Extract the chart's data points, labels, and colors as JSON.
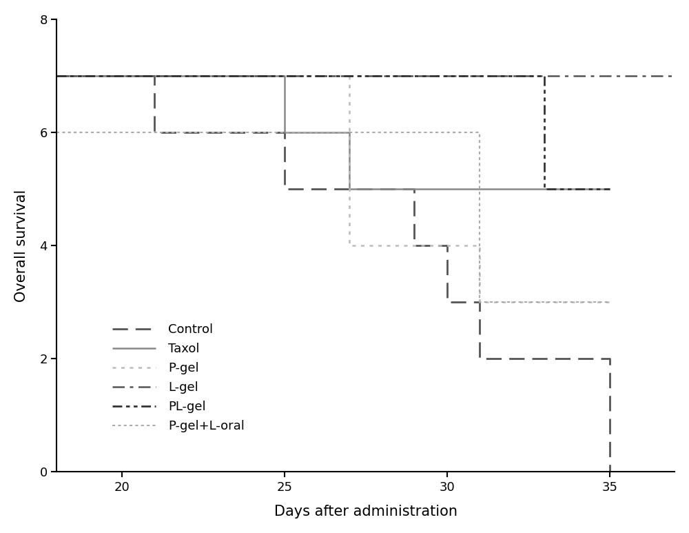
{
  "title": "",
  "xlabel": "Days after administration",
  "ylabel": "Overall survival",
  "xlim": [
    18,
    37
  ],
  "ylim": [
    0,
    8
  ],
  "xticks": [
    20,
    25,
    30,
    35
  ],
  "yticks": [
    0,
    2,
    4,
    6,
    8
  ],
  "figsize": [
    10.0,
    7.73
  ],
  "dpi": 100,
  "curves": {
    "Control": {
      "x": [
        18,
        21,
        21,
        25,
        25,
        29,
        29,
        30,
        30,
        31,
        31,
        35,
        35
      ],
      "y": [
        7,
        7,
        6,
        6,
        5,
        5,
        4,
        4,
        3,
        3,
        2,
        2,
        0
      ],
      "color": "#555555",
      "ls": [
        8,
        4
      ],
      "lw": 2.0,
      "legend": "Control"
    },
    "Taxol": {
      "x": [
        18,
        25,
        25,
        27,
        27,
        35
      ],
      "y": [
        7,
        7,
        6,
        6,
        5,
        5
      ],
      "color": "#888888",
      "ls": "solid",
      "lw": 1.8,
      "legend": "Taxol"
    },
    "P-gel": {
      "x": [
        18,
        27,
        27,
        31,
        31,
        35
      ],
      "y": [
        7,
        7,
        4,
        4,
        3,
        3
      ],
      "color": "#bbbbbb",
      "ls": [
        2,
        3
      ],
      "lw": 1.8,
      "legend": "P-gel"
    },
    "L-gel": {
      "x": [
        18,
        37
      ],
      "y": [
        7,
        7
      ],
      "color": "#555555",
      "ls": [
        7,
        3,
        2,
        3
      ],
      "lw": 1.8,
      "legend": "L-gel"
    },
    "PL-gel": {
      "x": [
        18,
        33,
        33,
        35
      ],
      "y": [
        7,
        7,
        5,
        5
      ],
      "color": "#333333",
      "ls": [
        5,
        2,
        2,
        2,
        2,
        2
      ],
      "lw": 2.0,
      "legend": "PL-gel"
    },
    "P-gel+L-oral": {
      "x": [
        18,
        31,
        31,
        35
      ],
      "y": [
        6,
        6,
        3,
        3
      ],
      "color": "#aaaaaa",
      "ls": [
        2,
        2,
        2,
        2,
        2,
        2
      ],
      "lw": 1.5,
      "legend": "P-gel+L-oral"
    }
  },
  "legend_names": [
    "Control",
    "Taxol",
    "P-gel",
    "L-gel",
    "PL-gel",
    "P-gel+L-oral"
  ],
  "background_color": "#ffffff"
}
